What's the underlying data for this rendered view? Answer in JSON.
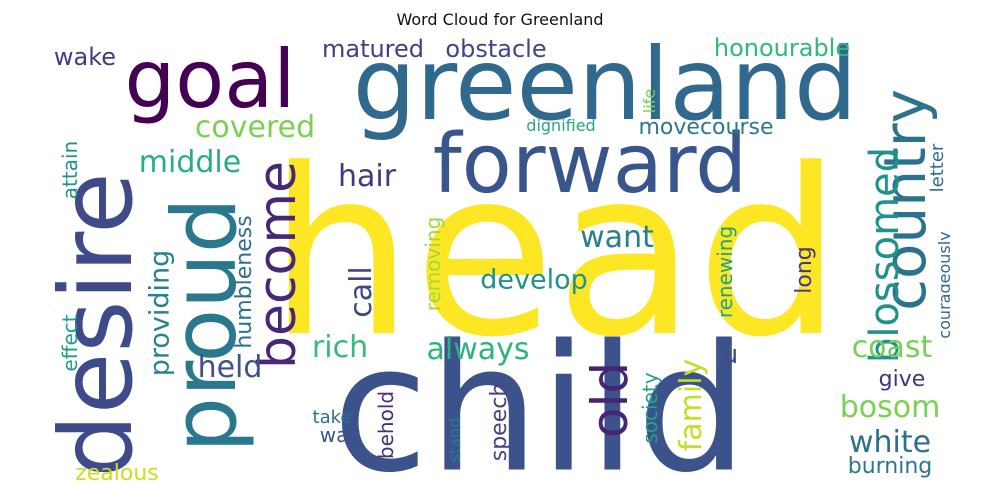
{
  "title": "Word Cloud for Greenland",
  "words": [
    {
      "text": "head",
      "color": "#fde725"
    },
    {
      "text": "child",
      "color": "#3b528b"
    },
    {
      "text": "greenland",
      "color": "#31688e"
    },
    {
      "text": "forward",
      "color": "#39568c"
    },
    {
      "text": "desire",
      "color": "#3e4a89"
    },
    {
      "text": "proud",
      "color": "#2a788e"
    },
    {
      "text": "goal",
      "color": "#440154"
    },
    {
      "text": "country",
      "color": "#2c728e"
    },
    {
      "text": "become",
      "color": "#482677"
    },
    {
      "text": "old",
      "color": "#482475"
    },
    {
      "text": "blossomed",
      "color": "#20928c"
    },
    {
      "text": "covered",
      "color": "#7ad151"
    },
    {
      "text": "middle",
      "color": "#29af7f"
    },
    {
      "text": "hair",
      "color": "#453781"
    },
    {
      "text": "want",
      "color": "#277f8e"
    },
    {
      "text": "call",
      "color": "#3f4788"
    },
    {
      "text": "rich",
      "color": "#3aba76"
    },
    {
      "text": "always",
      "color": "#2db27d"
    },
    {
      "text": "coast",
      "color": "#75d054"
    },
    {
      "text": "bosom",
      "color": "#7ad151"
    },
    {
      "text": "white",
      "color": "#2d708e"
    },
    {
      "text": "family",
      "color": "#c2df23"
    },
    {
      "text": "held",
      "color": "#3b528b"
    },
    {
      "text": "providing",
      "color": "#25838e"
    },
    {
      "text": "humbleness",
      "color": "#2d708e"
    },
    {
      "text": "develop",
      "color": "#21918c"
    },
    {
      "text": "matured",
      "color": "#433e85"
    },
    {
      "text": "obstacle",
      "color": "#404688"
    },
    {
      "text": "honourable",
      "color": "#35b779"
    },
    {
      "text": "wake",
      "color": "#443a83"
    },
    {
      "text": "movecourse",
      "color": "#2a788e"
    },
    {
      "text": "dignified",
      "color": "#22a884"
    },
    {
      "text": "life",
      "color": "#7ad151"
    },
    {
      "text": "attain",
      "color": "#21918c"
    },
    {
      "text": "removing",
      "color": "#a0da39"
    },
    {
      "text": "renewing",
      "color": "#1fa188"
    },
    {
      "text": "long",
      "color": "#443983"
    },
    {
      "text": "courageously",
      "color": "#31688e"
    },
    {
      "text": "letter",
      "color": "#2d708e"
    },
    {
      "text": "effect",
      "color": "#1f9e89"
    },
    {
      "text": "society",
      "color": "#20a486"
    },
    {
      "text": "speech",
      "color": "#414487"
    },
    {
      "text": "behold",
      "color": "#472d7b"
    },
    {
      "text": "give",
      "color": "#46337f"
    },
    {
      "text": "burning",
      "color": "#2a788e"
    },
    {
      "text": "zealous",
      "color": "#c8e020"
    },
    {
      "text": "take",
      "color": "#2c728e"
    },
    {
      "text": "way",
      "color": "#3b528b"
    },
    {
      "text": "stand",
      "color": "#2a788e"
    },
    {
      "text": "u",
      "color": "#3e4a89"
    }
  ]
}
